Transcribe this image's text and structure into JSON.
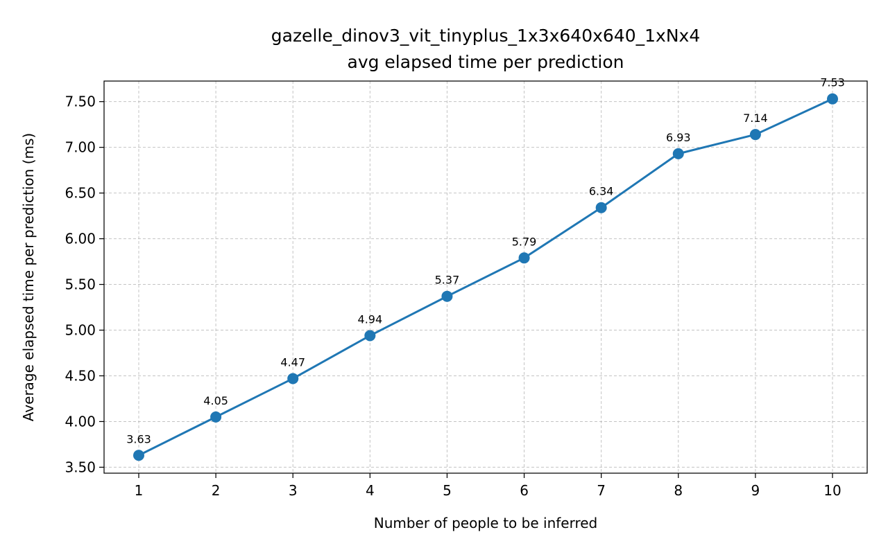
{
  "chart_data": {
    "type": "line",
    "title_line1": "gazelle_dinov3_vit_tinyplus_1x3x640x640_1xNx4",
    "title_line2": "avg elapsed time per prediction",
    "xlabel": "Number of people to be inferred",
    "ylabel": "Average elapsed time per prediction (ms)",
    "x": [
      1,
      2,
      3,
      4,
      5,
      6,
      7,
      8,
      9,
      10
    ],
    "x_tick_labels": [
      "1",
      "2",
      "3",
      "4",
      "5",
      "6",
      "7",
      "8",
      "9",
      "10"
    ],
    "y_ticks": [
      3.5,
      4.0,
      4.5,
      5.0,
      5.5,
      6.0,
      6.5,
      7.0,
      7.5
    ],
    "y_tick_labels": [
      "3.50",
      "4.00",
      "4.50",
      "5.00",
      "5.50",
      "6.00",
      "6.50",
      "7.00",
      "7.50"
    ],
    "series": [
      {
        "values": [
          3.63,
          4.05,
          4.47,
          4.94,
          5.37,
          5.79,
          6.34,
          6.93,
          7.14,
          7.53
        ],
        "data_labels": [
          "3.63",
          "4.05",
          "4.47",
          "4.94",
          "5.37",
          "5.79",
          "6.34",
          "6.93",
          "7.14",
          "7.53"
        ],
        "color": "#1f77b4",
        "marker": "circle"
      }
    ],
    "xlim": [
      0.55,
      10.45
    ],
    "ylim": [
      3.435,
      7.725
    ],
    "grid": true,
    "legend": "none"
  }
}
